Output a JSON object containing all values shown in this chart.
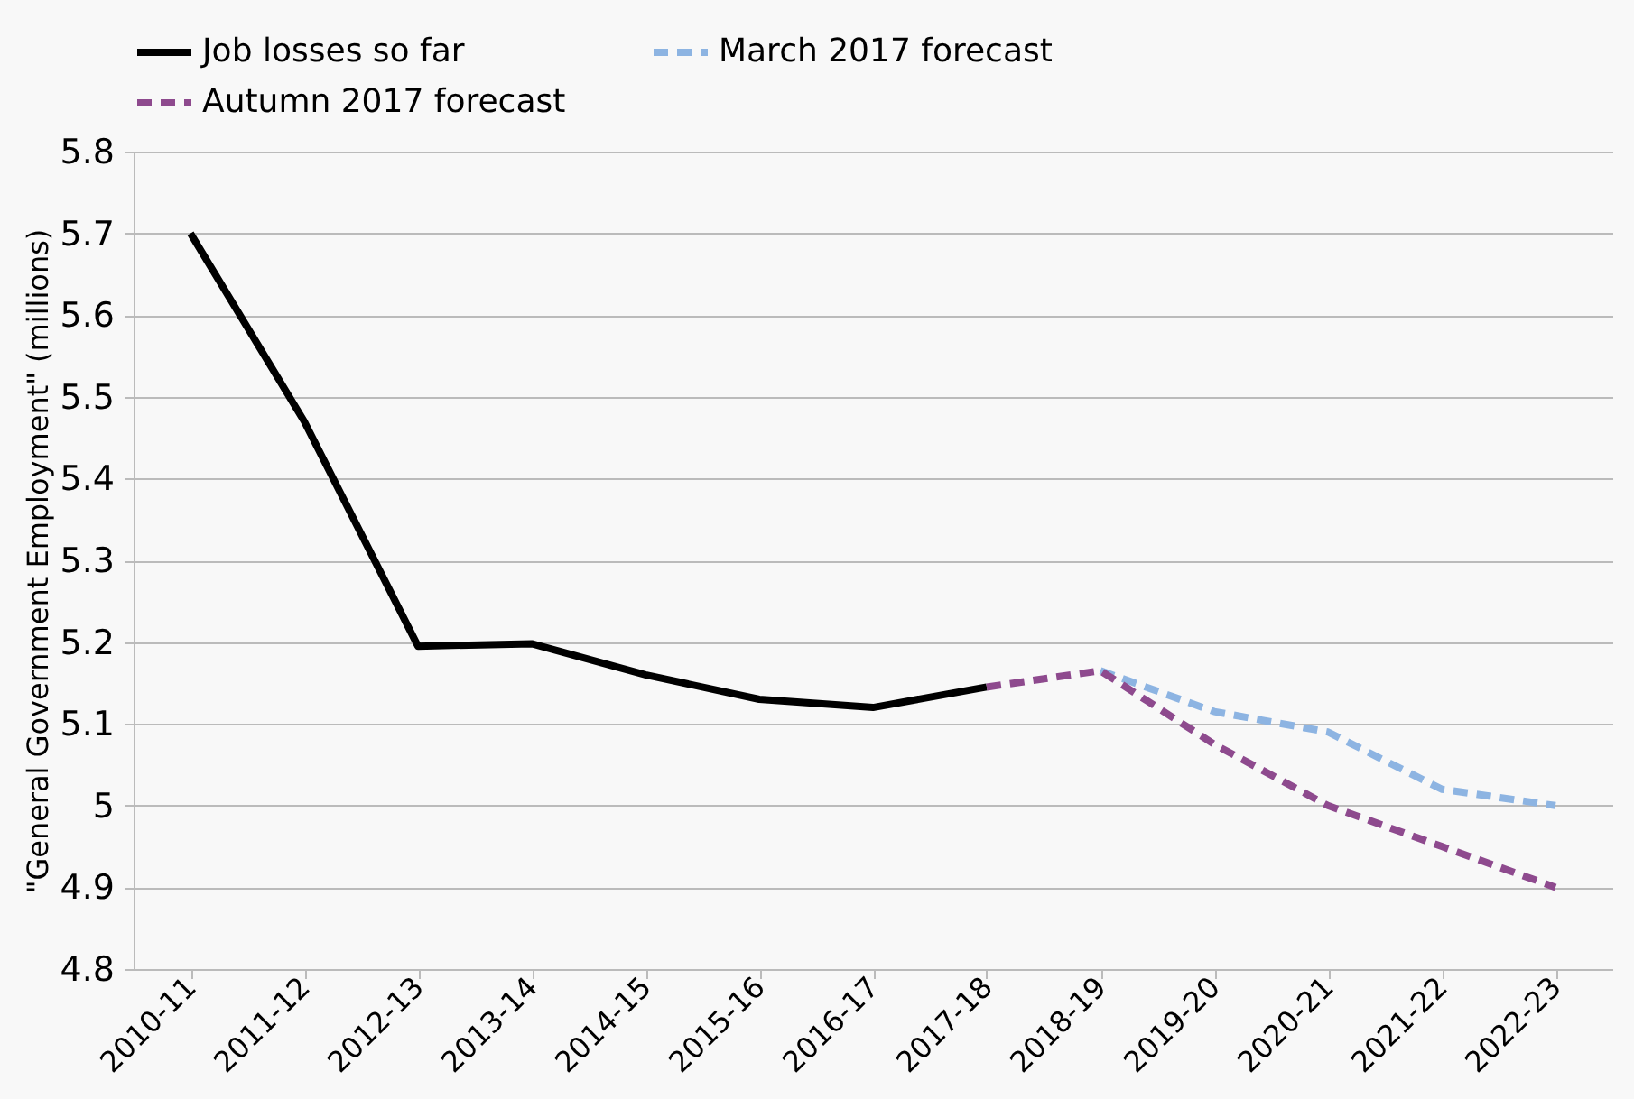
{
  "chart_data": {
    "type": "line",
    "ylabel": "\"General Government Employment\" (millions)",
    "categories": [
      "2010-11",
      "2011-12",
      "2012-13",
      "2013-14",
      "2014-15",
      "2015-16",
      "2016-17",
      "2017-18",
      "2018-19",
      "2019-20",
      "2020-21",
      "2021-22",
      "2022-23"
    ],
    "series": [
      {
        "name": "Job losses so far",
        "color": "#000000",
        "line_style": "solid",
        "values": [
          5.7,
          5.47,
          5.195,
          5.198,
          5.16,
          5.13,
          5.12,
          5.145,
          null,
          null,
          null,
          null,
          null
        ]
      },
      {
        "name": "March 2017 forecast",
        "color": "#8db4e2",
        "line_style": "dashed",
        "values": [
          null,
          null,
          null,
          null,
          null,
          null,
          null,
          null,
          5.165,
          5.115,
          5.09,
          5.02,
          5.0
        ]
      },
      {
        "name": "Autumn 2017 forecast",
        "color": "#8e4a8e",
        "line_style": "dashed",
        "values": [
          null,
          null,
          null,
          null,
          null,
          null,
          null,
          5.145,
          5.165,
          5.075,
          5.0,
          4.95,
          4.9
        ]
      }
    ],
    "ylim": [
      4.8,
      5.8
    ],
    "yticks": [
      4.8,
      4.9,
      5,
      5.1,
      5.2,
      5.3,
      5.4,
      5.5,
      5.6,
      5.7,
      5.8
    ],
    "grid": "y",
    "legend": "top"
  }
}
